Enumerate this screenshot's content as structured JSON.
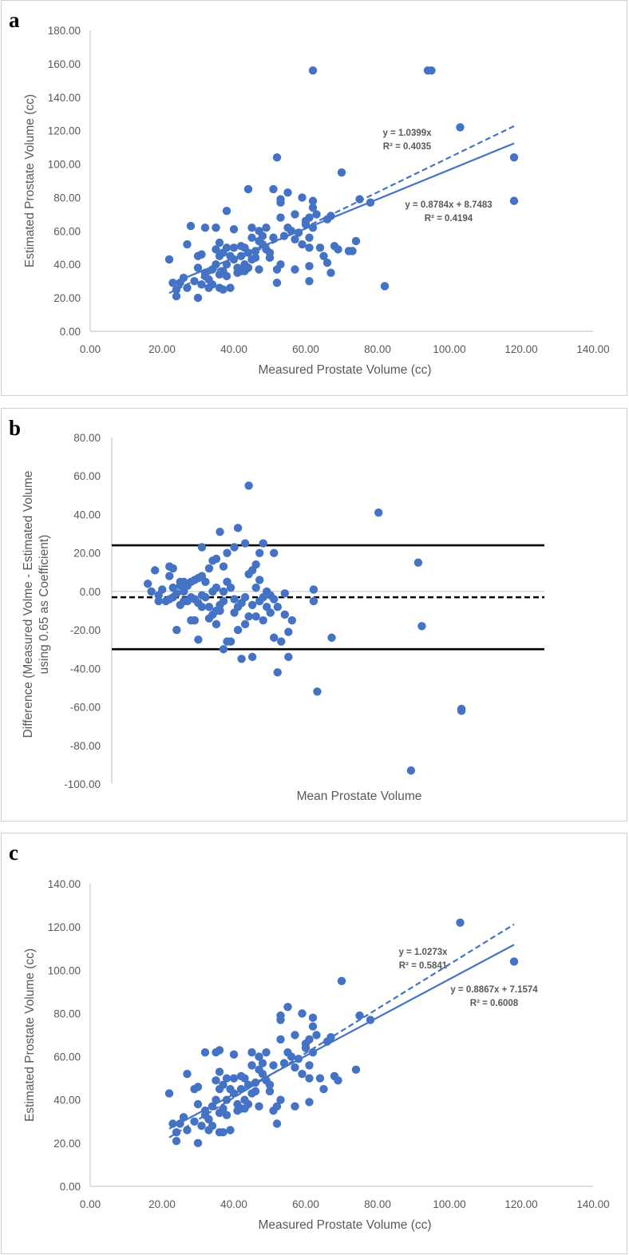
{
  "colors": {
    "series": "#4472c4",
    "axis": "#bfbfbf",
    "text": "#595959",
    "limits": "#000000"
  },
  "panels": [
    {
      "letter": "a"
    },
    {
      "letter": "b"
    },
    {
      "letter": "c"
    }
  ],
  "chart_data": [
    {
      "type": "scatter",
      "panel": "a",
      "xlabel": "Measured Prostate Volume (cc)",
      "ylabel": "Estimated Prostate Volume (cc)",
      "xlim": [
        0,
        140
      ],
      "ylim": [
        0,
        180
      ],
      "xticks": [
        "0.00",
        "20.00",
        "40.00",
        "60.00",
        "80.00",
        "100.00",
        "120.00",
        "140.00"
      ],
      "yticks": [
        "0.00",
        "20.00",
        "40.00",
        "60.00",
        "80.00",
        "100.00",
        "120.00",
        "140.00",
        "160.00",
        "180.00"
      ],
      "trendlines": [
        {
          "type": "through-origin",
          "style": "dashed",
          "slope": 1.0399,
          "intercept": 0,
          "x_range": [
            22,
            118
          ],
          "label1": "y = 1.0399x",
          "label2": "R² = 0.4035"
        },
        {
          "type": "linear",
          "style": "solid",
          "slope": 0.8784,
          "intercept": 8.7483,
          "x_range": [
            22,
            118
          ],
          "label1": "y = 0.8784x + 8.7483",
          "label2": "R² = 0.4194"
        }
      ],
      "points": [
        [
          22,
          43
        ],
        [
          23,
          29
        ],
        [
          24,
          25
        ],
        [
          24,
          21
        ],
        [
          25,
          29
        ],
        [
          26,
          32
        ],
        [
          27,
          52
        ],
        [
          27,
          26
        ],
        [
          28,
          63
        ],
        [
          29,
          30
        ],
        [
          30,
          45
        ],
        [
          30,
          38
        ],
        [
          30,
          20
        ],
        [
          31,
          46
        ],
        [
          31,
          28
        ],
        [
          32,
          35
        ],
        [
          32,
          62
        ],
        [
          32,
          33
        ],
        [
          33,
          31
        ],
        [
          33,
          26
        ],
        [
          34,
          28
        ],
        [
          34,
          37
        ],
        [
          35,
          40
        ],
        [
          35,
          49
        ],
        [
          35,
          62
        ],
        [
          35,
          62
        ],
        [
          36,
          53
        ],
        [
          36,
          45
        ],
        [
          36,
          34
        ],
        [
          36,
          26
        ],
        [
          37,
          47
        ],
        [
          37,
          36
        ],
        [
          37,
          25
        ],
        [
          38,
          72
        ],
        [
          38,
          50
        ],
        [
          38,
          40
        ],
        [
          38,
          33
        ],
        [
          39,
          45
        ],
        [
          39,
          26
        ],
        [
          40,
          61
        ],
        [
          40,
          50
        ],
        [
          40,
          43
        ],
        [
          41,
          35
        ],
        [
          41,
          38
        ],
        [
          42,
          51
        ],
        [
          42,
          45
        ],
        [
          42,
          36
        ],
        [
          43,
          50
        ],
        [
          43,
          40
        ],
        [
          43,
          36
        ],
        [
          44,
          85
        ],
        [
          44,
          47
        ],
        [
          44,
          38
        ],
        [
          45,
          62
        ],
        [
          45,
          56
        ],
        [
          45,
          43
        ],
        [
          46,
          48
        ],
        [
          46,
          44
        ],
        [
          47,
          60
        ],
        [
          47,
          54
        ],
        [
          47,
          37
        ],
        [
          48,
          57
        ],
        [
          48,
          52
        ],
        [
          49,
          62
        ],
        [
          49,
          49
        ],
        [
          50,
          47
        ],
        [
          50,
          44
        ],
        [
          51,
          85
        ],
        [
          51,
          56
        ],
        [
          52,
          104
        ],
        [
          52,
          29
        ],
        [
          52,
          37
        ],
        [
          53,
          68
        ],
        [
          53,
          79
        ],
        [
          53,
          77
        ],
        [
          53,
          40
        ],
        [
          54,
          57
        ],
        [
          55,
          83
        ],
        [
          55,
          62
        ],
        [
          56,
          60
        ],
        [
          57,
          55
        ],
        [
          57,
          70
        ],
        [
          57,
          37
        ],
        [
          58,
          59
        ],
        [
          59,
          80
        ],
        [
          59,
          52
        ],
        [
          60,
          66
        ],
        [
          60,
          64
        ],
        [
          61,
          68
        ],
        [
          61,
          56
        ],
        [
          61,
          50
        ],
        [
          61,
          39
        ],
        [
          61,
          30
        ],
        [
          62,
          74
        ],
        [
          62,
          62
        ],
        [
          62,
          78
        ],
        [
          63,
          70
        ],
        [
          64,
          50
        ],
        [
          65,
          45
        ],
        [
          66,
          67
        ],
        [
          66,
          41
        ],
        [
          67,
          69
        ],
        [
          67,
          35
        ],
        [
          68,
          51
        ],
        [
          69,
          49
        ],
        [
          70,
          95
        ],
        [
          72,
          48
        ],
        [
          73,
          48
        ],
        [
          74,
          54
        ],
        [
          75,
          79
        ],
        [
          78,
          77
        ],
        [
          82,
          27
        ],
        [
          62,
          156
        ],
        [
          94,
          156
        ],
        [
          95,
          156
        ],
        [
          103,
          122
        ],
        [
          118,
          104
        ],
        [
          118,
          78
        ]
      ]
    },
    {
      "type": "scatter",
      "panel": "b",
      "xlabel": "Mean Prostate Volume",
      "ylabel_line1": "Difference (Measured Volme - Estimated Volume",
      "ylabel_line2": "using 0.65 as Coefficient)",
      "xlim": [
        15,
        135
      ],
      "ylim": [
        -100,
        80
      ],
      "yticks": [
        "80.00",
        "60.00",
        "40.00",
        "20.00",
        "0.00",
        "-20.00",
        "-40.00",
        "-60.00",
        "-80.00",
        "-100.00"
      ],
      "reference_lines": [
        {
          "name": "upper-limit",
          "value": 24,
          "style": "solid"
        },
        {
          "name": "mean-difference",
          "value": -3,
          "style": "dashed"
        },
        {
          "name": "lower-limit",
          "value": -30,
          "style": "solid"
        }
      ],
      "points": [
        [
          25,
          4
        ],
        [
          26,
          0
        ],
        [
          27,
          11
        ],
        [
          28,
          -2
        ],
        [
          28,
          -5
        ],
        [
          29,
          1
        ],
        [
          30,
          -5
        ],
        [
          31,
          -4
        ],
        [
          31,
          8
        ],
        [
          31,
          13
        ],
        [
          32,
          2
        ],
        [
          32,
          -3
        ],
        [
          32,
          12
        ],
        [
          33,
          -20
        ],
        [
          33,
          -1
        ],
        [
          34,
          5
        ],
        [
          34,
          3
        ],
        [
          34,
          -7
        ],
        [
          35,
          5
        ],
        [
          35,
          -5
        ],
        [
          35,
          0
        ],
        [
          36,
          3
        ],
        [
          36,
          -5
        ],
        [
          37,
          5
        ],
        [
          37,
          -15
        ],
        [
          37,
          -3
        ],
        [
          38,
          6
        ],
        [
          38,
          -4
        ],
        [
          38,
          -15
        ],
        [
          39,
          7
        ],
        [
          39,
          -6
        ],
        [
          39,
          -25
        ],
        [
          40,
          23
        ],
        [
          40,
          8
        ],
        [
          40,
          -8
        ],
        [
          40,
          -2
        ],
        [
          41,
          5
        ],
        [
          41,
          -3
        ],
        [
          42,
          12
        ],
        [
          42,
          -14
        ],
        [
          42,
          -8
        ],
        [
          43,
          16
        ],
        [
          43,
          0
        ],
        [
          43,
          -12
        ],
        [
          44,
          17
        ],
        [
          44,
          2
        ],
        [
          44,
          -10
        ],
        [
          44,
          -17
        ],
        [
          45,
          31
        ],
        [
          45,
          -7
        ],
        [
          45,
          -10
        ],
        [
          46,
          13
        ],
        [
          46,
          0
        ],
        [
          46,
          -5
        ],
        [
          46,
          -30
        ],
        [
          47,
          20
        ],
        [
          47,
          5
        ],
        [
          47,
          -26
        ],
        [
          48,
          2
        ],
        [
          48,
          -26
        ],
        [
          49,
          23
        ],
        [
          49,
          -4
        ],
        [
          49,
          -11
        ],
        [
          50,
          33
        ],
        [
          50,
          -8
        ],
        [
          50,
          -20
        ],
        [
          51,
          -6
        ],
        [
          51,
          -35
        ],
        [
          52,
          25
        ],
        [
          52,
          -3
        ],
        [
          52,
          -17
        ],
        [
          53,
          55
        ],
        [
          53,
          9
        ],
        [
          53,
          -13
        ],
        [
          54,
          11
        ],
        [
          54,
          -7
        ],
        [
          54,
          -34
        ],
        [
          55,
          14
        ],
        [
          55,
          2
        ],
        [
          55,
          -13
        ],
        [
          56,
          20
        ],
        [
          56,
          6
        ],
        [
          56,
          -5
        ],
        [
          57,
          25
        ],
        [
          57,
          -3
        ],
        [
          57,
          -15
        ],
        [
          58,
          0
        ],
        [
          58,
          -8
        ],
        [
          59,
          -2
        ],
        [
          59,
          -11
        ],
        [
          60,
          20
        ],
        [
          60,
          -4
        ],
        [
          60,
          -24
        ],
        [
          61,
          -8
        ],
        [
          61,
          -42
        ],
        [
          62,
          -26
        ],
        [
          63,
          -1
        ],
        [
          63,
          -12
        ],
        [
          64,
          -34
        ],
        [
          64,
          -21
        ],
        [
          65,
          -15
        ],
        [
          71,
          1
        ],
        [
          71,
          -5
        ],
        [
          72,
          -52
        ],
        [
          76,
          -24
        ],
        [
          89,
          41
        ],
        [
          98,
          -93
        ],
        [
          100,
          15
        ],
        [
          101,
          -18
        ],
        [
          112,
          -61
        ],
        [
          112,
          -62
        ]
      ]
    },
    {
      "type": "scatter",
      "panel": "c",
      "xlabel": "Measured Prostate Volume (cc)",
      "ylabel": "Estimated Prostate Volume (cc)",
      "xlim": [
        0,
        140
      ],
      "ylim": [
        0,
        140
      ],
      "xticks": [
        "0.00",
        "20.00",
        "40.00",
        "60.00",
        "80.00",
        "100.00",
        "120.00",
        "140.00"
      ],
      "yticks": [
        "0.00",
        "20.00",
        "40.00",
        "60.00",
        "80.00",
        "100.00",
        "120.00",
        "140.00"
      ],
      "trendlines": [
        {
          "type": "through-origin",
          "style": "dashed",
          "slope": 1.0273,
          "intercept": 0,
          "x_range": [
            22,
            118
          ],
          "label1": "y = 1.0273x",
          "label2": "R² = 0.5841"
        },
        {
          "type": "linear",
          "style": "solid",
          "slope": 0.8867,
          "intercept": 7.1574,
          "x_range": [
            22,
            118
          ],
          "label1": "y = 0.8867x + 7.1574",
          "label2": "R² = 0.6008"
        }
      ],
      "points": [
        [
          22,
          43
        ],
        [
          23,
          29
        ],
        [
          24,
          25
        ],
        [
          24,
          21
        ],
        [
          25,
          29
        ],
        [
          26,
          32
        ],
        [
          27,
          52
        ],
        [
          27,
          26
        ],
        [
          29,
          30
        ],
        [
          29,
          45
        ],
        [
          30,
          38
        ],
        [
          30,
          20
        ],
        [
          30,
          46
        ],
        [
          31,
          28
        ],
        [
          32,
          35
        ],
        [
          32,
          62
        ],
        [
          32,
          33
        ],
        [
          33,
          31
        ],
        [
          33,
          26
        ],
        [
          34,
          28
        ],
        [
          34,
          37
        ],
        [
          35,
          40
        ],
        [
          35,
          49
        ],
        [
          35,
          62
        ],
        [
          36,
          63
        ],
        [
          36,
          53
        ],
        [
          36,
          45
        ],
        [
          36,
          34
        ],
        [
          36,
          25
        ],
        [
          37,
          47
        ],
        [
          37,
          36
        ],
        [
          37,
          25
        ],
        [
          38,
          50
        ],
        [
          38,
          40
        ],
        [
          38,
          33
        ],
        [
          39,
          45
        ],
        [
          39,
          26
        ],
        [
          40,
          61
        ],
        [
          40,
          50
        ],
        [
          40,
          43
        ],
        [
          41,
          35
        ],
        [
          41,
          38
        ],
        [
          42,
          51
        ],
        [
          42,
          45
        ],
        [
          42,
          36
        ],
        [
          43,
          50
        ],
        [
          43,
          40
        ],
        [
          43,
          36
        ],
        [
          44,
          47
        ],
        [
          44,
          38
        ],
        [
          45,
          62
        ],
        [
          45,
          56
        ],
        [
          45,
          43
        ],
        [
          46,
          48
        ],
        [
          46,
          44
        ],
        [
          47,
          60
        ],
        [
          47,
          54
        ],
        [
          47,
          37
        ],
        [
          48,
          57
        ],
        [
          48,
          52
        ],
        [
          49,
          62
        ],
        [
          49,
          49
        ],
        [
          50,
          47
        ],
        [
          50,
          44
        ],
        [
          51,
          56
        ],
        [
          51,
          35
        ],
        [
          52,
          29
        ],
        [
          52,
          37
        ],
        [
          53,
          68
        ],
        [
          53,
          79
        ],
        [
          53,
          77
        ],
        [
          53,
          40
        ],
        [
          54,
          57
        ],
        [
          55,
          83
        ],
        [
          55,
          62
        ],
        [
          56,
          60
        ],
        [
          57,
          55
        ],
        [
          57,
          70
        ],
        [
          57,
          37
        ],
        [
          58,
          59
        ],
        [
          59,
          80
        ],
        [
          59,
          52
        ],
        [
          60,
          66
        ],
        [
          60,
          64
        ],
        [
          61,
          68
        ],
        [
          61,
          56
        ],
        [
          61,
          50
        ],
        [
          61,
          39
        ],
        [
          62,
          74
        ],
        [
          62,
          62
        ],
        [
          62,
          78
        ],
        [
          63,
          70
        ],
        [
          64,
          50
        ],
        [
          65,
          45
        ],
        [
          66,
          67
        ],
        [
          67,
          69
        ],
        [
          68,
          51
        ],
        [
          69,
          49
        ],
        [
          70,
          95
        ],
        [
          74,
          54
        ],
        [
          75,
          79
        ],
        [
          78,
          77
        ],
        [
          103,
          122
        ],
        [
          118,
          104
        ]
      ]
    }
  ]
}
